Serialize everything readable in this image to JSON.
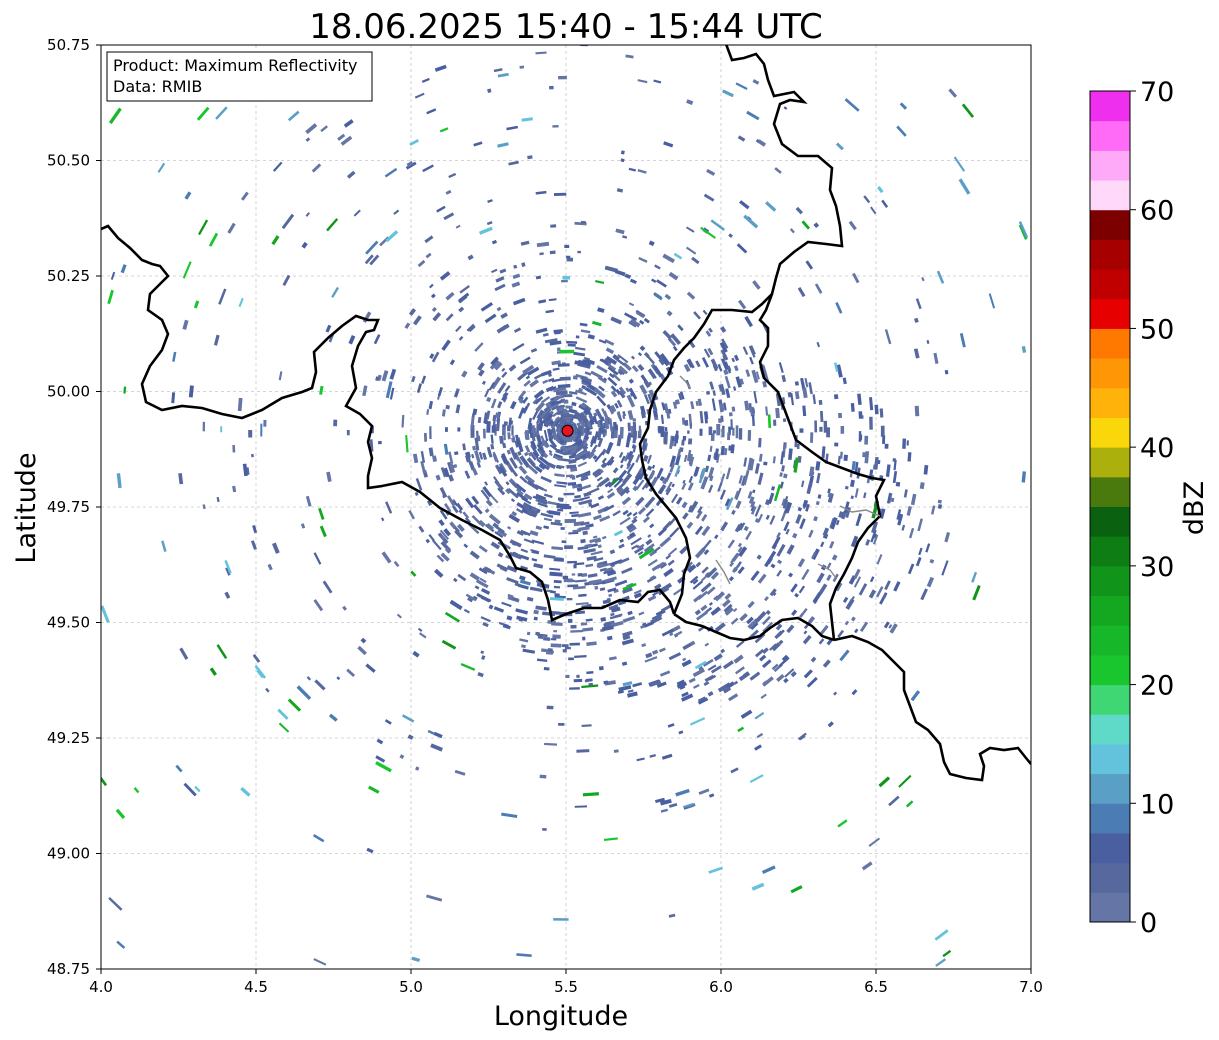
{
  "title": "18.06.2025 15:40 - 15:44 UTC",
  "annotation": {
    "line1": "Product: Maximum Reflectivity",
    "line2": "Data: RMIB"
  },
  "axes": {
    "xlabel": "Longitude",
    "ylabel": "Latitude",
    "xlim": [
      4.0,
      7.0
    ],
    "ylim": [
      48.75,
      50.75
    ],
    "xticks": [
      "4.0",
      "4.5",
      "5.0",
      "5.5",
      "6.0",
      "6.5",
      "7.0"
    ],
    "yticks": [
      "48.75",
      "49.00",
      "49.25",
      "49.50",
      "49.75",
      "50.00",
      "50.25",
      "50.50",
      "50.75"
    ],
    "grid": true
  },
  "radar_site": {
    "lon": 5.505,
    "lat": 49.915,
    "color": "#e8141e"
  },
  "colorbar": {
    "label": "dBZ",
    "min": 0,
    "max": 70,
    "ticks": [
      "0",
      "10",
      "20",
      "30",
      "40",
      "50",
      "60",
      "70"
    ],
    "colors": [
      "#6475a6",
      "#56689e",
      "#4a5fa0",
      "#4b7db4",
      "#5aa0c6",
      "#64c3dc",
      "#5fdac9",
      "#3fd674",
      "#19c62d",
      "#16b82a",
      "#13a81f",
      "#11941a",
      "#0e7e14",
      "#0a6210",
      "#4a7a0e",
      "#abb00d",
      "#f9d70a",
      "#ffb20a",
      "#ff9605",
      "#ff7800",
      "#e60000",
      "#c00000",
      "#a70000",
      "#7d0000",
      "#ffd8fa",
      "#ffaaf8",
      "#ff6af6",
      "#ee30ee"
    ]
  }
}
